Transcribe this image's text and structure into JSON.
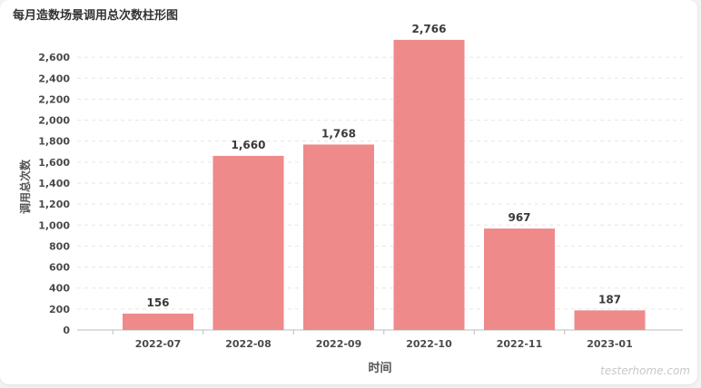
{
  "chart_data": {
    "type": "bar",
    "title": "每月造数场景调用总次数柱形图",
    "xlabel": "时间",
    "ylabel": "调用总次数",
    "categories": [
      "2022-07",
      "2022-08",
      "2022-09",
      "2022-10",
      "2022-11",
      "2023-01"
    ],
    "series": [
      {
        "values": [
          156,
          1660,
          1768,
          2766,
          967,
          187
        ],
        "data_labels": [
          "156",
          "1,660",
          "1,768",
          "2,766",
          "967",
          "187"
        ]
      }
    ],
    "ylim": [
      0,
      2800
    ],
    "yticks": [
      0,
      200,
      400,
      600,
      800,
      1000,
      1200,
      1400,
      1600,
      1800,
      2000,
      2200,
      2400,
      2600
    ],
    "ytick_labels": [
      "0",
      "200",
      "400",
      "600",
      "800",
      "1,000",
      "1,200",
      "1,400",
      "1,600",
      "1,800",
      "2,000",
      "2,200",
      "2,400",
      "2,600"
    ],
    "grid": true,
    "legend": "none"
  },
  "colors": {
    "bar": "#ef8a8a",
    "axis_text": "#4a4a4a",
    "gridline": "#e6e6e6"
  },
  "watermark": "testerhome.com"
}
